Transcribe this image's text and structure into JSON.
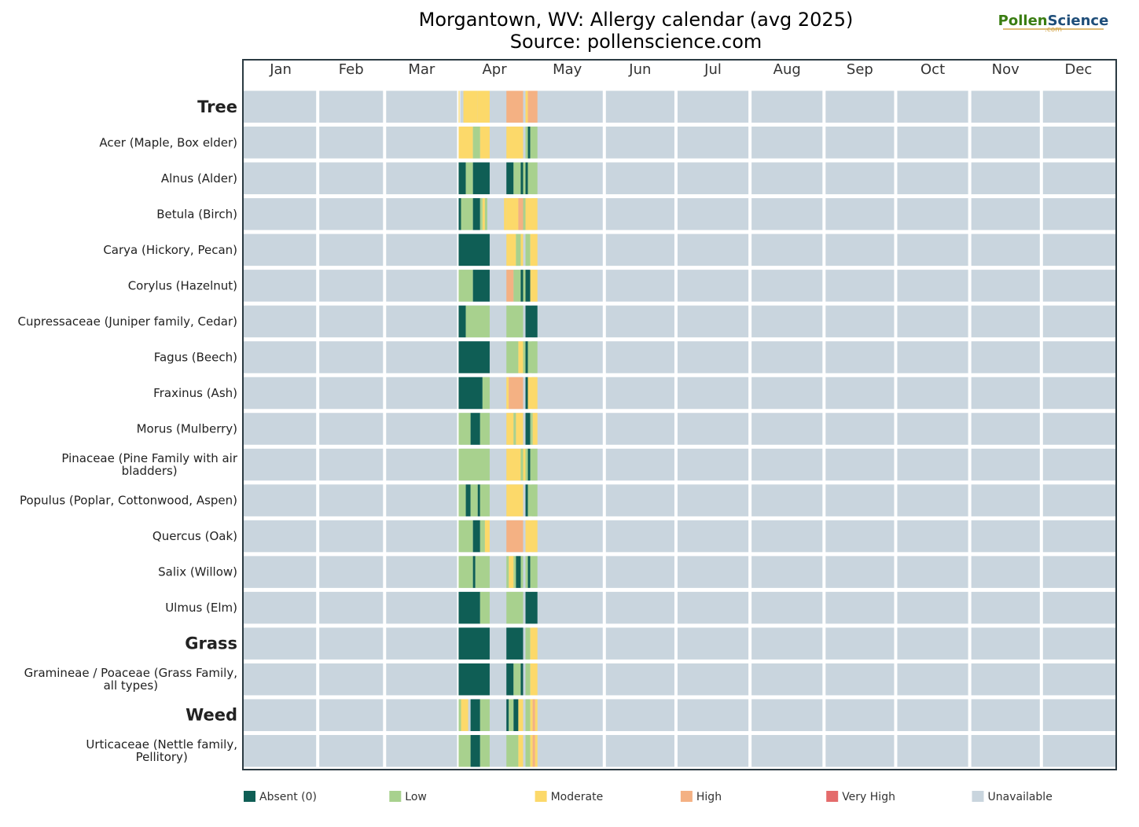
{
  "chart_data": {
    "type": "heatmap",
    "title": "Morgantown, WV: Allergy calendar (avg 2025)",
    "subtitle": "Source: pollenscience.com",
    "logo": {
      "part1": "Pollen",
      "part2": "Science",
      "sub": ".com"
    },
    "months": [
      "Jan",
      "Feb",
      "Mar",
      "Apr",
      "May",
      "Jun",
      "Jul",
      "Aug",
      "Sep",
      "Oct",
      "Nov",
      "Dec"
    ],
    "levels": [
      {
        "key": "A",
        "label": "Absent (0)",
        "color": "#0f5e55"
      },
      {
        "key": "L",
        "label": "Low",
        "color": "#a8d18e"
      },
      {
        "key": "M",
        "label": "Moderate",
        "color": "#fcd96a"
      },
      {
        "key": "H",
        "label": "High",
        "color": "#f4b183"
      },
      {
        "key": "V",
        "label": "Very High",
        "color": "#e46b6b"
      },
      {
        "key": "U",
        "label": "Unavailable",
        "color": "#c9d5de"
      }
    ],
    "rows": [
      {
        "label": "Tree",
        "group": true,
        "segments": [
          [
            90,
            0,
            "M"
          ],
          [
            92,
            6,
            "M"
          ],
          [
            98,
            5,
            "M"
          ],
          [
            110,
            7,
            "H"
          ],
          [
            118,
            1,
            "M"
          ],
          [
            119,
            4,
            "H"
          ]
        ]
      },
      {
        "label": "Acer (Maple, Box elder)",
        "group": false,
        "segments": [
          [
            90,
            6,
            "M"
          ],
          [
            96,
            3,
            "L"
          ],
          [
            99,
            4,
            "M"
          ],
          [
            110,
            7,
            "M"
          ],
          [
            118,
            1,
            "L"
          ],
          [
            119,
            1,
            "A"
          ],
          [
            120,
            3,
            "L"
          ]
        ]
      },
      {
        "label": "Alnus (Alder)",
        "group": false,
        "segments": [
          [
            90,
            3,
            "A"
          ],
          [
            93,
            3,
            "L"
          ],
          [
            96,
            7,
            "A"
          ],
          [
            110,
            3,
            "A"
          ],
          [
            113,
            3,
            "L"
          ],
          [
            116,
            1,
            "A"
          ],
          [
            117,
            1,
            "L"
          ],
          [
            118,
            1,
            "A"
          ],
          [
            119,
            4,
            "L"
          ]
        ]
      },
      {
        "label": "Betula (Birch)",
        "group": false,
        "segments": [
          [
            90,
            1,
            "A"
          ],
          [
            91,
            5,
            "L"
          ],
          [
            96,
            3,
            "A"
          ],
          [
            99,
            1,
            "L"
          ],
          [
            100,
            1,
            "M"
          ],
          [
            101,
            1,
            "L"
          ],
          [
            109,
            1,
            "M"
          ],
          [
            110,
            5,
            "M"
          ],
          [
            115,
            2,
            "H"
          ],
          [
            117,
            1,
            "L"
          ],
          [
            118,
            1,
            "M"
          ],
          [
            119,
            4,
            "M"
          ]
        ]
      },
      {
        "label": "Carya (Hickory, Pecan)",
        "group": false,
        "segments": [
          [
            90,
            13,
            "A"
          ],
          [
            110,
            4,
            "M"
          ],
          [
            114,
            2,
            "L"
          ],
          [
            116,
            1,
            "M"
          ],
          [
            118,
            2,
            "L"
          ],
          [
            120,
            3,
            "M"
          ]
        ]
      },
      {
        "label": "Corylus (Hazelnut)",
        "group": false,
        "segments": [
          [
            90,
            1,
            "L"
          ],
          [
            91,
            5,
            "L"
          ],
          [
            96,
            7,
            "A"
          ],
          [
            110,
            3,
            "H"
          ],
          [
            113,
            3,
            "L"
          ],
          [
            116,
            1,
            "A"
          ],
          [
            117,
            1,
            "L"
          ],
          [
            118,
            2,
            "A"
          ],
          [
            120,
            3,
            "M"
          ]
        ]
      },
      {
        "label": "Cupressaceae (Juniper family, Cedar)",
        "group": false,
        "segments": [
          [
            90,
            3,
            "A"
          ],
          [
            93,
            10,
            "L"
          ],
          [
            110,
            7,
            "L"
          ],
          [
            118,
            5,
            "A"
          ]
        ]
      },
      {
        "label": "Fagus (Beech)",
        "group": false,
        "segments": [
          [
            90,
            13,
            "A"
          ],
          [
            110,
            5,
            "L"
          ],
          [
            115,
            2,
            "M"
          ],
          [
            117,
            1,
            "L"
          ],
          [
            118,
            1,
            "A"
          ],
          [
            119,
            4,
            "L"
          ]
        ]
      },
      {
        "label": "Fraxinus (Ash)",
        "group": false,
        "segments": [
          [
            90,
            10,
            "A"
          ],
          [
            100,
            3,
            "L"
          ],
          [
            110,
            1,
            "M"
          ],
          [
            111,
            6,
            "H"
          ],
          [
            118,
            1,
            "A"
          ],
          [
            119,
            4,
            "M"
          ]
        ]
      },
      {
        "label": "Morus (Mulberry)",
        "group": false,
        "segments": [
          [
            90,
            1,
            "L"
          ],
          [
            91,
            4,
            "L"
          ],
          [
            95,
            4,
            "A"
          ],
          [
            99,
            4,
            "L"
          ],
          [
            110,
            3,
            "M"
          ],
          [
            113,
            1,
            "L"
          ],
          [
            114,
            3,
            "M"
          ],
          [
            118,
            2,
            "A"
          ],
          [
            120,
            1,
            "L"
          ],
          [
            121,
            2,
            "M"
          ]
        ]
      },
      {
        "label": "Pinaceae (Pine Family with air bladders)",
        "group": false,
        "segments": [
          [
            90,
            13,
            "L"
          ],
          [
            110,
            6,
            "M"
          ],
          [
            116,
            1,
            "L"
          ],
          [
            117,
            1,
            "M"
          ],
          [
            118,
            1,
            "L"
          ],
          [
            119,
            1,
            "A"
          ],
          [
            120,
            3,
            "L"
          ]
        ]
      },
      {
        "label": "Populus (Poplar, Cottonwood, Aspen)",
        "group": false,
        "segments": [
          [
            90,
            3,
            "L"
          ],
          [
            93,
            2,
            "A"
          ],
          [
            95,
            3,
            "L"
          ],
          [
            98,
            1,
            "A"
          ],
          [
            99,
            4,
            "L"
          ],
          [
            110,
            7,
            "M"
          ],
          [
            118,
            1,
            "A"
          ],
          [
            119,
            4,
            "L"
          ]
        ]
      },
      {
        "label": "Quercus (Oak)",
        "group": false,
        "segments": [
          [
            90,
            6,
            "L"
          ],
          [
            96,
            3,
            "A"
          ],
          [
            99,
            2,
            "L"
          ],
          [
            101,
            2,
            "M"
          ],
          [
            110,
            7,
            "H"
          ],
          [
            118,
            5,
            "M"
          ]
        ]
      },
      {
        "label": "Salix (Willow)",
        "group": false,
        "segments": [
          [
            90,
            6,
            "L"
          ],
          [
            96,
            1,
            "A"
          ],
          [
            97,
            6,
            "L"
          ],
          [
            110,
            1,
            "L"
          ],
          [
            111,
            2,
            "M"
          ],
          [
            113,
            1,
            "L"
          ],
          [
            114,
            2,
            "A"
          ],
          [
            116,
            1,
            "L"
          ],
          [
            118,
            1,
            "L"
          ],
          [
            119,
            1,
            "A"
          ],
          [
            120,
            3,
            "L"
          ]
        ]
      },
      {
        "label": "Ulmus (Elm)",
        "group": false,
        "segments": [
          [
            90,
            9,
            "A"
          ],
          [
            99,
            4,
            "L"
          ],
          [
            110,
            7,
            "L"
          ],
          [
            118,
            5,
            "A"
          ]
        ]
      },
      {
        "label": "Grass",
        "group": true,
        "segments": [
          [
            90,
            13,
            "A"
          ],
          [
            110,
            7,
            "A"
          ],
          [
            118,
            2,
            "L"
          ],
          [
            120,
            3,
            "M"
          ]
        ]
      },
      {
        "label": "Gramineae / Poaceae (Grass Family, all types)",
        "group": false,
        "segments": [
          [
            90,
            13,
            "A"
          ],
          [
            110,
            3,
            "A"
          ],
          [
            113,
            3,
            "L"
          ],
          [
            116,
            1,
            "A"
          ],
          [
            118,
            2,
            "L"
          ],
          [
            120,
            3,
            "M"
          ]
        ]
      },
      {
        "label": "Weed",
        "group": true,
        "segments": [
          [
            90,
            1,
            "L"
          ],
          [
            91,
            3,
            "M"
          ],
          [
            95,
            4,
            "A"
          ],
          [
            99,
            4,
            "L"
          ],
          [
            110,
            1,
            "A"
          ],
          [
            111,
            2,
            "L"
          ],
          [
            113,
            2,
            "A"
          ],
          [
            115,
            2,
            "M"
          ],
          [
            118,
            2,
            "L"
          ],
          [
            120,
            1,
            "M"
          ],
          [
            121,
            1,
            "H"
          ],
          [
            122,
            1,
            "M"
          ]
        ]
      },
      {
        "label": "Urticaceae (Nettle family, Pellitory)",
        "group": false,
        "segments": [
          [
            90,
            1,
            "L"
          ],
          [
            91,
            4,
            "L"
          ],
          [
            95,
            4,
            "A"
          ],
          [
            99,
            4,
            "L"
          ],
          [
            110,
            5,
            "L"
          ],
          [
            115,
            2,
            "M"
          ],
          [
            118,
            2,
            "L"
          ],
          [
            120,
            1,
            "M"
          ],
          [
            121,
            1,
            "H"
          ],
          [
            122,
            1,
            "M"
          ]
        ]
      }
    ]
  }
}
